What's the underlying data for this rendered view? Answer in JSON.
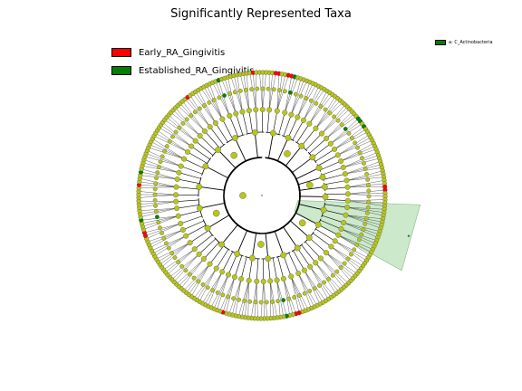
{
  "title": "Significantly Represented Taxa",
  "colors": {
    "early": "#ff0000",
    "established": "#008000",
    "neutral_node": "#b8c61a",
    "highlight": "#8fcf8f"
  },
  "legend": {
    "items": [
      {
        "label": "Early_RA_Gingivitis",
        "color": "#ff0000"
      },
      {
        "label": "Established_RA_Gingivitis",
        "color": "#008000"
      }
    ],
    "clade_label": "a: C_Actinobacteria",
    "clade_color": "#008000"
  },
  "tree": {
    "leaf_count": 240,
    "highlight_clade": "a",
    "red_leaf_indices": [
      2,
      3,
      6,
      7,
      55,
      56,
      106,
      107,
      130,
      165,
      166,
      181,
      213,
      235
    ],
    "green_leaf_indices": [
      8,
      32,
      33,
      35,
      110,
      170,
      185,
      224
    ]
  }
}
